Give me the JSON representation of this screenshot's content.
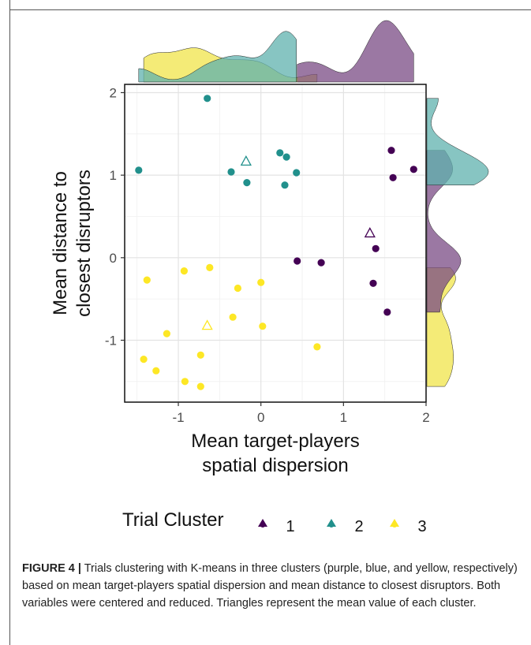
{
  "chart_data": {
    "type": "scatter",
    "xlabel": [
      "Mean target-players",
      "spatial dispersion"
    ],
    "ylabel": [
      "Mean distance to",
      "closest disruptors"
    ],
    "xlim": [
      -1.65,
      2.0
    ],
    "ylim": [
      -1.75,
      2.1
    ],
    "xticks": [
      -1,
      0,
      1,
      2
    ],
    "yticks": [
      -1,
      0,
      1,
      2
    ],
    "grid": true,
    "legend": {
      "title": "Trial Cluster",
      "placement": "bottom",
      "entries": [
        "1",
        "2",
        "3"
      ]
    },
    "series": [
      {
        "name": "1",
        "color": "#440154",
        "fill": "#7a4b84",
        "points": [
          {
            "x": 1.58,
            "y": 1.3
          },
          {
            "x": 1.85,
            "y": 1.07
          },
          {
            "x": 1.6,
            "y": 0.97
          },
          {
            "x": 1.39,
            "y": 0.11
          },
          {
            "x": 0.44,
            "y": -0.04
          },
          {
            "x": 0.73,
            "y": -0.06
          },
          {
            "x": 1.36,
            "y": -0.31
          },
          {
            "x": 1.53,
            "y": -0.66
          }
        ],
        "mean": {
          "x": 1.32,
          "y": 0.3
        }
      },
      {
        "name": "2",
        "color": "#21908c",
        "fill": "#5fb1ad",
        "points": [
          {
            "x": -0.65,
            "y": 1.93
          },
          {
            "x": -1.48,
            "y": 1.06
          },
          {
            "x": -0.36,
            "y": 1.04
          },
          {
            "x": -0.17,
            "y": 0.91
          },
          {
            "x": 0.23,
            "y": 1.27
          },
          {
            "x": 0.31,
            "y": 1.22
          },
          {
            "x": 0.29,
            "y": 0.88
          },
          {
            "x": 0.43,
            "y": 1.03
          }
        ],
        "mean": {
          "x": -0.18,
          "y": 1.17
        }
      },
      {
        "name": "3",
        "color": "#fde725",
        "fill": "#f0e44a",
        "points": [
          {
            "x": -1.38,
            "y": -0.27
          },
          {
            "x": -0.93,
            "y": -0.16
          },
          {
            "x": -0.62,
            "y": -0.12
          },
          {
            "x": -0.28,
            "y": -0.37
          },
          {
            "x": 0.0,
            "y": -0.3
          },
          {
            "x": -0.34,
            "y": -0.72
          },
          {
            "x": 0.02,
            "y": -0.83
          },
          {
            "x": -1.14,
            "y": -0.92
          },
          {
            "x": -1.42,
            "y": -1.23
          },
          {
            "x": -1.27,
            "y": -1.37
          },
          {
            "x": -0.73,
            "y": -1.18
          },
          {
            "x": 0.68,
            "y": -1.08
          },
          {
            "x": -0.92,
            "y": -1.5
          },
          {
            "x": -0.73,
            "y": -1.56
          }
        ],
        "mean": {
          "x": -0.65,
          "y": -0.82
        }
      }
    ]
  },
  "caption": {
    "label": "FIGURE 4 |",
    "text": " Trials clustering with K-means in three clusters (purple, blue, and yellow, respectively) based on mean target-players spatial dispersion and mean distance to closest disruptors. Both variables were centered and reduced. Triangles represent the mean value of each cluster."
  }
}
